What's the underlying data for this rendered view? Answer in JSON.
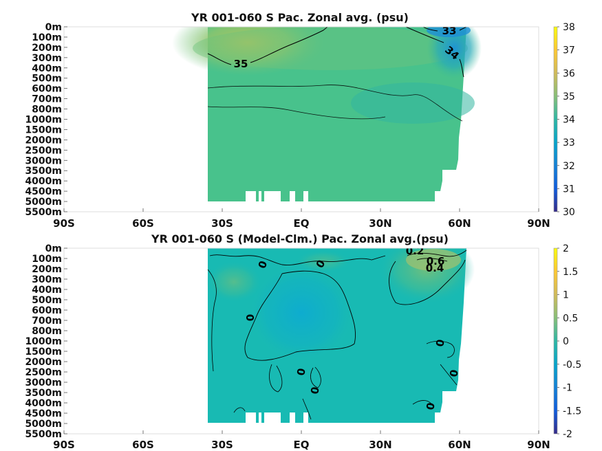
{
  "chart_data": [
    {
      "type": "heatmap",
      "title": "YR 001-060 S Pac. Zonal avg. (psu)",
      "xlabel": "",
      "ylabel": "",
      "x_ticks": [
        "90S",
        "60S",
        "30S",
        "EQ",
        "30N",
        "60N",
        "90N"
      ],
      "y_ticks": [
        "0m",
        "100m",
        "200m",
        "300m",
        "400m",
        "500m",
        "600m",
        "700m",
        "800m",
        "1000m",
        "1500m",
        "2000m",
        "2500m",
        "3000m",
        "3500m",
        "4000m",
        "4500m",
        "5000m",
        "5500m"
      ],
      "data_extent_lat": [
        -35,
        61
      ],
      "colorbar": {
        "min": 30,
        "max": 38,
        "ticks": [
          "30",
          "31",
          "32",
          "33",
          "34",
          "35",
          "36",
          "37",
          "38"
        ]
      },
      "contour_labels": [
        "33",
        "34",
        "35"
      ],
      "values_desc": {
        "surface_subtropical_max": 35.8,
        "north_surface_min": 33.0,
        "deep_value": 34.7
      },
      "colormap": [
        "#352a87",
        "#0f5cdd",
        "#1481d6",
        "#06a4ca",
        "#2eb7a4",
        "#87bf77",
        "#d1bb59",
        "#fec832",
        "#f9fb0e"
      ]
    },
    {
      "type": "heatmap",
      "title": "YR 001-060 S (Model-Clm.) Pac. Zonal avg.(psu)",
      "xlabel": "",
      "ylabel": "",
      "x_ticks": [
        "90S",
        "60S",
        "30S",
        "EQ",
        "30N",
        "60N",
        "90N"
      ],
      "y_ticks": [
        "0m",
        "100m",
        "200m",
        "300m",
        "400m",
        "500m",
        "600m",
        "700m",
        "800m",
        "1000m",
        "1500m",
        "2000m",
        "2500m",
        "3000m",
        "3500m",
        "4000m",
        "4500m",
        "5000m",
        "5500m"
      ],
      "data_extent_lat": [
        -35,
        61
      ],
      "colorbar": {
        "min": -2,
        "max": 2,
        "ticks": [
          "-2",
          "-1.5",
          "-1",
          "-0.5",
          "0",
          "0.5",
          "1",
          "1.5",
          "2"
        ]
      },
      "contour_labels": [
        "0.2",
        "0.6",
        "0.4",
        "0",
        "0",
        "0",
        "0",
        "0",
        "0",
        "0",
        "0"
      ],
      "values_desc": {
        "north_subsurface_max": 0.6,
        "equatorial_min": -0.3,
        "deep_value": -0.1
      },
      "colormap": [
        "#352a87",
        "#0f5cdd",
        "#1481d6",
        "#06a4ca",
        "#2eb7a4",
        "#87bf77",
        "#d1bb59",
        "#fec832",
        "#f9fb0e"
      ]
    }
  ]
}
